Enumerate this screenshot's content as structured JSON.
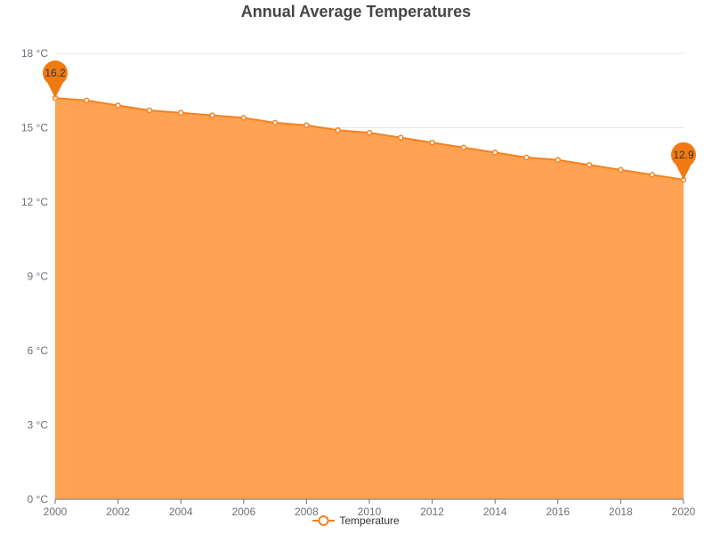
{
  "chart_data": {
    "type": "area",
    "title": "Annual Average Temperatures",
    "xlabel": "",
    "ylabel": "",
    "x": [
      2000,
      2001,
      2002,
      2003,
      2004,
      2005,
      2006,
      2007,
      2008,
      2009,
      2010,
      2011,
      2012,
      2013,
      2014,
      2015,
      2016,
      2017,
      2018,
      2019,
      2020
    ],
    "x_tick_labels": [
      "2000",
      "2002",
      "2004",
      "2006",
      "2008",
      "2010",
      "2012",
      "2014",
      "2016",
      "2018",
      "2020"
    ],
    "y_tick_labels": [
      "0 °C",
      "3 °C",
      "6 °C",
      "9 °C",
      "12 °C",
      "15 °C",
      "18 °C"
    ],
    "y_ticks": [
      0,
      3,
      6,
      9,
      12,
      15,
      18
    ],
    "ylim": [
      0,
      18
    ],
    "xlim": [
      2000,
      2020
    ],
    "unit": "°C",
    "grid": true,
    "legend_position": "bottom-center",
    "series": [
      {
        "name": "Temperature",
        "values": [
          16.2,
          16.1,
          15.9,
          15.7,
          15.6,
          15.5,
          15.4,
          15.2,
          15.1,
          14.9,
          14.8,
          14.6,
          14.4,
          14.2,
          14.0,
          13.8,
          13.7,
          13.5,
          13.3,
          13.1,
          12.9
        ],
        "color": "#f5821f",
        "area_color": "#ffa352"
      }
    ],
    "annotations": [
      {
        "type": "max",
        "x": 2000,
        "value": 16.2,
        "label": "16.2"
      },
      {
        "type": "min",
        "x": 2020,
        "value": 12.9,
        "label": "12.9"
      }
    ]
  }
}
